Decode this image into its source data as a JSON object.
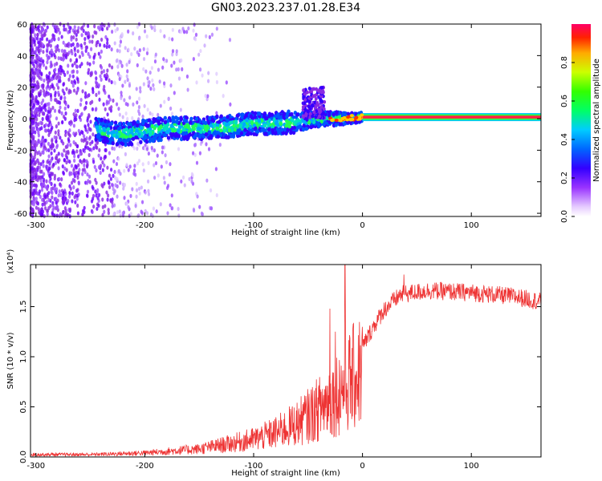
{
  "figure": {
    "title": "GN03.2023.237.01.28.E34"
  },
  "chart_data": [
    {
      "type": "heatmap",
      "xlabel": "Height of straight line (km)",
      "ylabel": "Frequency (Hz)",
      "xlim": [
        -305,
        164
      ],
      "ylim": [
        -62,
        60
      ],
      "xticks": [
        -300,
        -200,
        -100,
        0,
        100
      ],
      "yticks": [
        60,
        40,
        20,
        0,
        -20,
        -40,
        -60
      ],
      "colorbar": {
        "label": "Normalized spectral amplitude",
        "range": [
          0,
          1
        ],
        "ticks": [
          "0.0",
          "0.2",
          "0.4",
          "0.6",
          "0.8"
        ]
      },
      "ridge": [
        {
          "x": -245,
          "f": -7
        },
        {
          "x": -220,
          "f": -10
        },
        {
          "x": -200,
          "f": -8
        },
        {
          "x": -180,
          "f": -6
        },
        {
          "x": -150,
          "f": -6
        },
        {
          "x": -120,
          "f": -5
        },
        {
          "x": -100,
          "f": -3
        },
        {
          "x": -80,
          "f": -3
        },
        {
          "x": -60,
          "f": -2
        },
        {
          "x": -40,
          "f": 0
        },
        {
          "x": -20,
          "f": 0
        },
        {
          "x": 0,
          "f": 1
        },
        {
          "x": 164,
          "f": 1
        }
      ]
    },
    {
      "type": "line",
      "xlabel": "Height of straight line (km)",
      "ylabel": "SNR (10 * v/v)",
      "yscale_label": "(x10⁴)",
      "xlim": [
        -305,
        164
      ],
      "ylim": [
        0,
        1.92
      ],
      "xticks": [
        -300,
        -200,
        -100,
        0,
        100
      ],
      "yticks": [
        0.0,
        0.5,
        1.0,
        1.5
      ],
      "series_color": "#ee3333",
      "envelope": [
        {
          "x": -305,
          "y": 0.03
        },
        {
          "x": -250,
          "y": 0.03
        },
        {
          "x": -200,
          "y": 0.05
        },
        {
          "x": -150,
          "y": 0.1
        },
        {
          "x": -120,
          "y": 0.17
        },
        {
          "x": -100,
          "y": 0.22
        },
        {
          "x": -80,
          "y": 0.3
        },
        {
          "x": -60,
          "y": 0.42
        },
        {
          "x": -40,
          "y": 0.6
        },
        {
          "x": -25,
          "y": 0.78
        },
        {
          "x": -15,
          "y": 0.9
        },
        {
          "x": 0,
          "y": 1.1
        },
        {
          "x": 10,
          "y": 1.3
        },
        {
          "x": 20,
          "y": 1.47
        },
        {
          "x": 35,
          "y": 1.62
        },
        {
          "x": 60,
          "y": 1.66
        },
        {
          "x": 100,
          "y": 1.64
        },
        {
          "x": 140,
          "y": 1.6
        },
        {
          "x": 164,
          "y": 1.55
        }
      ],
      "spikes": [
        {
          "x": -16,
          "y": 1.92
        },
        {
          "x": -30,
          "y": 1.48
        },
        {
          "x": -25,
          "y": 1.25
        },
        {
          "x": 38,
          "y": 1.82
        }
      ]
    }
  ]
}
